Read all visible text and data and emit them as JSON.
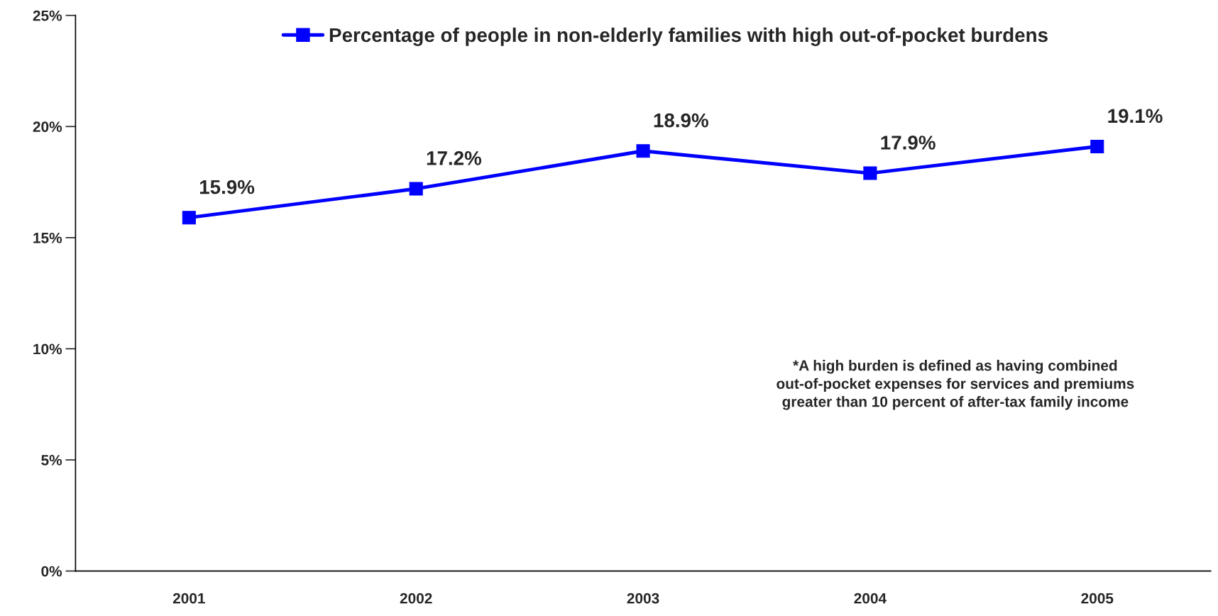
{
  "chart_data": {
    "type": "line",
    "categories": [
      "2001",
      "2002",
      "2003",
      "2004",
      "2005"
    ],
    "series": [
      {
        "name": "Percentage of people in non-elderly families with high out-of-pocket burdens",
        "color": "#0000ff",
        "values": [
          15.9,
          17.2,
          18.9,
          17.9,
          19.1
        ],
        "value_labels": [
          "15.9%",
          "17.2%",
          "18.9%",
          "17.9%",
          "19.1%"
        ]
      }
    ],
    "ylim": [
      0,
      25
    ],
    "yticks": [
      {
        "value": 0,
        "label": "0%"
      },
      {
        "value": 5,
        "label": "5%"
      },
      {
        "value": 10,
        "label": "10%"
      },
      {
        "value": 15,
        "label": "15%"
      },
      {
        "value": 20,
        "label": "20%"
      },
      {
        "value": 25,
        "label": "25%"
      }
    ],
    "annotations": [
      "*A high burden is defined as having combined\nout-of-pocket expenses for services and premiums\ngreater than 10 percent of after-tax family income"
    ],
    "grid": false,
    "legend": "top",
    "marker": "square",
    "line_style": "solid"
  }
}
